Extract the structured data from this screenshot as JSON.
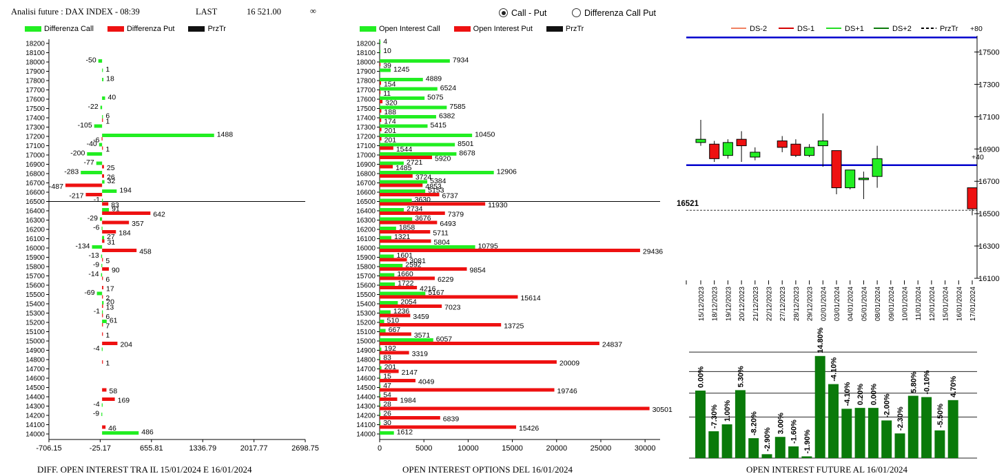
{
  "header": {
    "title": "Analisi future : DAX INDEX - 08:39",
    "last_label": "LAST",
    "last_value": "16 521.00",
    "infinity": "∞"
  },
  "radio": [
    {
      "label": "Call - Put",
      "selected": true
    },
    {
      "label": "Differenza Call Put",
      "selected": false
    }
  ],
  "colors": {
    "call": "#22ee22",
    "put": "#ee1111",
    "dark_green": "#0a7a0a",
    "blue": "#0000cc"
  },
  "panel1": {
    "legend": [
      "Differenza Call",
      "Differenza Put",
      "PrzTr"
    ],
    "footer": "DIFF. OPEN INTEREST TRA IL 15/01/2024 E 16/01/2024"
  },
  "panel2": {
    "legend": [
      "Open Interest Call",
      "Open Interest Put",
      "PrzTr"
    ],
    "footer": "OPEN INTEREST OPTIONS DEL 16/01/2024"
  },
  "panel3": {
    "legend": [
      "DS-2",
      "DS-1",
      "DS+1",
      "DS+2",
      "PrzTr",
      "+80"
    ],
    "label_plus40": "+40",
    "price_label": "16521",
    "footer": "OPEN INTEREST FUTURE AL 16/01/2024"
  },
  "chart_data": [
    {
      "type": "bar",
      "orientation": "horizontal",
      "strikes": [
        "18200",
        "18100",
        "18000",
        "17900",
        "17800",
        "17700",
        "17600",
        "17500",
        "17400",
        "17300",
        "17200",
        "17100",
        "17000",
        "16900",
        "16800",
        "16700",
        "16600",
        "16500",
        "16400",
        "16300",
        "16200",
        "16100",
        "16000",
        "15900",
        "15800",
        "15700",
        "15600",
        "15500",
        "15400",
        "15300",
        "15200",
        "15100",
        "15000",
        "14900",
        "14800",
        "14700",
        "14600",
        "14500",
        "14400",
        "14300",
        "14200",
        "14100",
        "14000"
      ],
      "series": [
        {
          "name": "Differenza Call",
          "values": [
            null,
            null,
            -50,
            1,
            18,
            null,
            40,
            -22,
            6,
            -105,
            1488,
            -40,
            -200,
            -77,
            -283,
            32,
            194,
            -1,
            91,
            -29,
            -6,
            27,
            -134,
            -13,
            -9,
            -14,
            null,
            -69,
            20,
            -1,
            61,
            null,
            null,
            -4,
            null,
            null,
            null,
            null,
            null,
            -4,
            -9,
            null,
            486
          ]
        },
        {
          "name": "Differenza Put",
          "values": [
            null,
            null,
            null,
            null,
            null,
            null,
            null,
            null,
            1,
            null,
            -6,
            1,
            null,
            25,
            26,
            -487,
            -217,
            83,
            642,
            357,
            184,
            31,
            458,
            5,
            90,
            6,
            17,
            2,
            13,
            6,
            7,
            1,
            204,
            null,
            1,
            null,
            null,
            58,
            169,
            null,
            null,
            46,
            null
          ]
        }
      ],
      "xticks": [
        "-706.15",
        "-25.17",
        "655.81",
        "1336.79",
        "2017.77",
        "2698.75"
      ],
      "xlim": [
        -706.15,
        2698.75
      ],
      "przTr": 16500
    },
    {
      "type": "bar",
      "orientation": "horizontal",
      "strikes": [
        "18200",
        "18100",
        "18000",
        "17900",
        "17800",
        "17700",
        "17600",
        "17500",
        "17400",
        "17300",
        "17200",
        "17100",
        "17000",
        "16900",
        "16800",
        "16700",
        "16600",
        "16500",
        "16400",
        "16300",
        "16200",
        "16100",
        "16000",
        "15900",
        "15800",
        "15700",
        "15600",
        "15500",
        "15400",
        "15300",
        "15200",
        "15100",
        "15000",
        "14900",
        "14800",
        "14700",
        "14600",
        "14500",
        "14400",
        "14300",
        "14200",
        "14100",
        "14000"
      ],
      "series": [
        {
          "name": "Open Interest Call",
          "values": [
            4,
            10,
            7934,
            1245,
            4889,
            6524,
            5075,
            7585,
            6382,
            5415,
            10450,
            8501,
            8678,
            2721,
            12906,
            5384,
            5153,
            3630,
            2734,
            3676,
            1858,
            1321,
            10795,
            1601,
            2592,
            1660,
            1722,
            5167,
            2054,
            1236,
            510,
            667,
            6057,
            192,
            83,
            201,
            15,
            47,
            54,
            28,
            26,
            30,
            1612
          ]
        },
        {
          "name": "Open Interest Put",
          "values": [
            null,
            null,
            39,
            null,
            154,
            11,
            320,
            188,
            174,
            201,
            201,
            1544,
            5920,
            1485,
            3724,
            4853,
            6737,
            11930,
            7379,
            6493,
            5711,
            5804,
            29436,
            3081,
            9854,
            6229,
            4216,
            15614,
            7023,
            3459,
            13725,
            3571,
            24837,
            3319,
            20009,
            2147,
            4049,
            19746,
            1984,
            30501,
            6839,
            15426,
            null
          ]
        }
      ],
      "xticks": [
        "0",
        "5000",
        "10000",
        "15000",
        "20000",
        "25000",
        "30000"
      ],
      "xlim": [
        0,
        31700
      ],
      "przTr": 16500
    },
    {
      "type": "candlestick",
      "dates": [
        "15/12/2023",
        "18/12/2023",
        "19/12/2023",
        "20/12/2023",
        "21/12/2023",
        "22/12/2023",
        "27/12/2023",
        "28/12/2023",
        "29/12/2023",
        "02/01/2024",
        "03/01/2024",
        "04/01/2024",
        "05/01/2024",
        "08/01/2024",
        "09/01/2024",
        "10/01/2024",
        "11/01/2024",
        "12/01/2024",
        "15/01/2024",
        "16/01/2024",
        "17/01/2024"
      ],
      "ohlc": [
        [
          16940,
          17080,
          16920,
          16960
        ],
        [
          16930,
          16950,
          16820,
          16840
        ],
        [
          16860,
          16960,
          16840,
          16940
        ],
        [
          16960,
          17010,
          16820,
          16920
        ],
        [
          16850,
          16910,
          16830,
          16880
        ],
        null,
        [
          16950,
          16980,
          16880,
          16910
        ],
        [
          16930,
          16960,
          16850,
          16860
        ],
        [
          16860,
          16930,
          16850,
          16910
        ],
        [
          16920,
          17120,
          16790,
          16950
        ],
        [
          16890,
          16890,
          16620,
          16660
        ],
        [
          16660,
          16730,
          16650,
          16770
        ],
        [
          16710,
          16760,
          16590,
          16720
        ],
        [
          16730,
          16920,
          16660,
          16840
        ],
        null,
        null,
        null,
        null,
        null,
        null,
        [
          16660,
          16660,
          16490,
          16530
        ]
      ],
      "yticks": [
        "17500",
        "17300",
        "17100",
        "16900",
        "16700",
        "16500",
        "16300",
        "16100"
      ],
      "ylim": [
        16100,
        17600
      ],
      "blue_lines": [
        17590,
        16800
      ],
      "last": 16521
    },
    {
      "type": "bar",
      "labels": [
        "0.00%",
        "-7.30%",
        "1.00%",
        "5.30%",
        "-8.20%",
        "-2.90%",
        "3.00%",
        "-1.60%",
        "-1.90%",
        "14.80%",
        "-4.10%",
        "-4.10%",
        "0.20%",
        "0.00%",
        "-2.00%",
        "-2.30%",
        "5.80%",
        "-0.10%",
        "-5.50%",
        "4.70%"
      ],
      "values": [
        1.56,
        0.62,
        0.78,
        1.57,
        0.46,
        0.09,
        0.49,
        0.27,
        0.04,
        2.36,
        1.71,
        1.14,
        1.16,
        1.16,
        0.87,
        0.57,
        1.44,
        1.41,
        0.64,
        1.34
      ],
      "ylim": [
        0,
        2.5
      ]
    }
  ]
}
